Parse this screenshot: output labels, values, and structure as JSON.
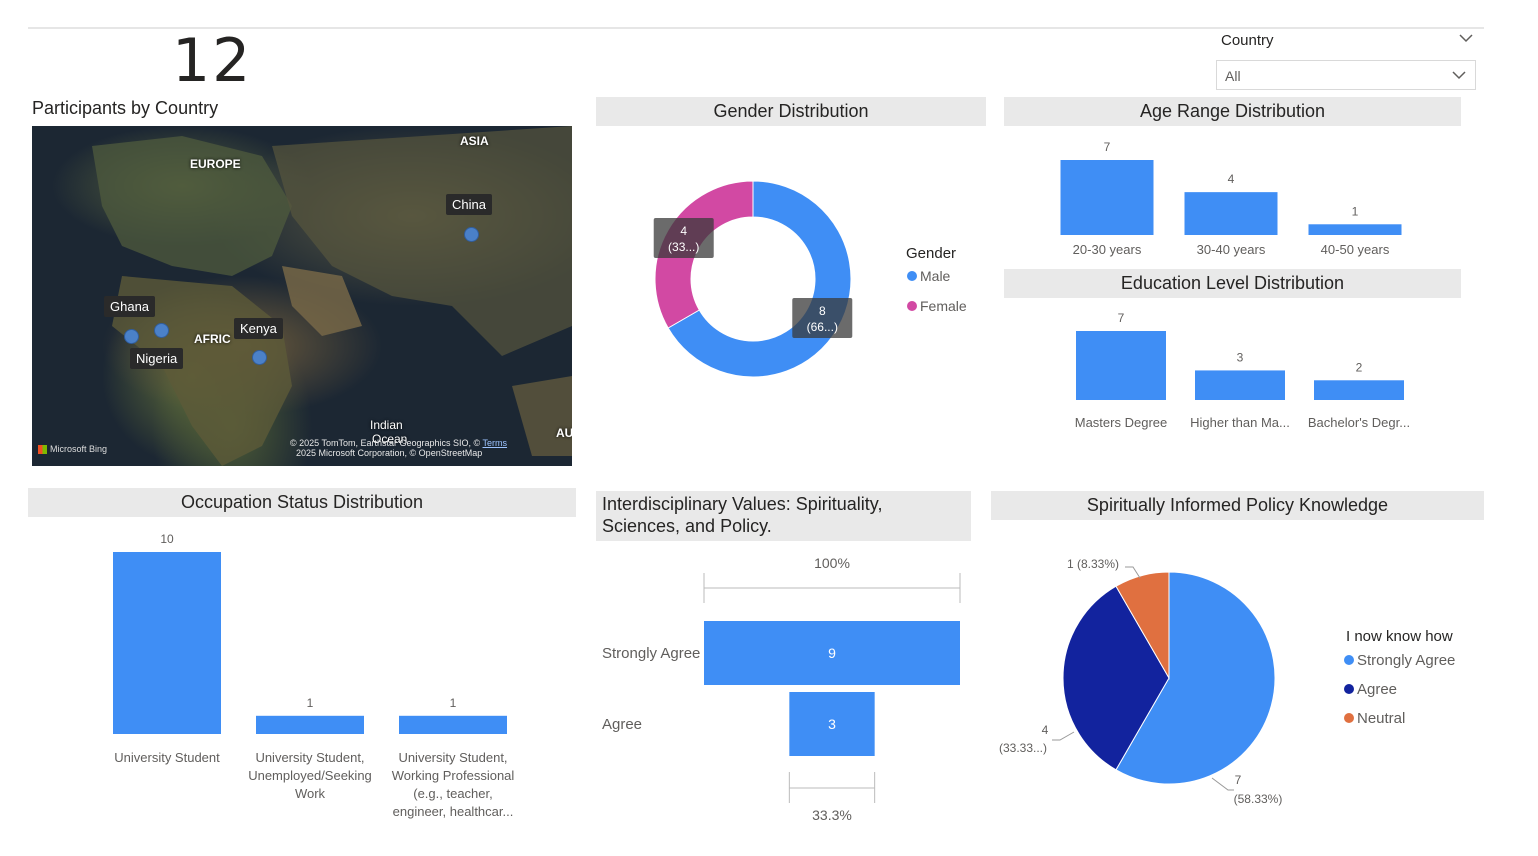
{
  "kpi": {
    "value": "12"
  },
  "slicer": {
    "label": "Country",
    "value": "All"
  },
  "map": {
    "title": "Participants by Country",
    "region_labels": [
      "ASIA",
      "EUROPE",
      "AFRIC",
      "Indian",
      "Ocean",
      "AU"
    ],
    "countries": [
      "China",
      "Ghana",
      "Kenya",
      "Nigeria"
    ],
    "attribution_brand": "Microsoft Bing",
    "attribution_line1": "© 2025 TomTom, Earthstar Geographics SIO, ©",
    "attribution_terms": "Terms",
    "attribution_line2": "2025 Microsoft Corporation, © OpenStreetMap"
  },
  "chart_data": [
    {
      "id": "gender",
      "type": "pie",
      "title": "Gender Distribution",
      "legend_title": "Gender",
      "legend_position": "right",
      "categories": [
        "Male",
        "Female"
      ],
      "values": [
        8,
        4
      ],
      "data_labels": [
        [
          "8",
          "(66...)"
        ],
        [
          "4",
          "(33...)"
        ]
      ],
      "colors": [
        "#3f8ef5",
        "#d249a3"
      ]
    },
    {
      "id": "age",
      "type": "bar",
      "title": "Age Range Distribution",
      "categories": [
        "20-30 years",
        "30-40 years",
        "40-50 years"
      ],
      "values": [
        7,
        4,
        1
      ],
      "color": "#3f8ef5"
    },
    {
      "id": "education",
      "type": "bar",
      "title": "Education Level Distribution",
      "categories": [
        "Masters Degree",
        "Higher than Ma...",
        "Bachelor's Degr..."
      ],
      "values": [
        7,
        3,
        2
      ],
      "color": "#3f8ef5"
    },
    {
      "id": "occupation",
      "type": "bar",
      "title": "Occupation Status Distribution",
      "categories": [
        [
          "University Student"
        ],
        [
          "University Student,",
          "Unemployed/Seeking",
          "Work"
        ],
        [
          "University Student,",
          "Working Professional",
          "(e.g., teacher,",
          "engineer, healthcar..."
        ]
      ],
      "values": [
        10,
        1,
        1
      ],
      "color": "#3f8ef5"
    },
    {
      "id": "interdisciplinary",
      "type": "bar",
      "title_lines": [
        "Interdisciplinary Values: Spirituality,",
        "Sciences, and Policy."
      ],
      "categories": [
        "Strongly Agree",
        "Agree"
      ],
      "values": [
        9,
        3
      ],
      "percent_labels": [
        "100%",
        "33.3%"
      ],
      "color": "#3f8ef5"
    },
    {
      "id": "policy",
      "type": "pie",
      "title": "Spiritually Informed Policy Knowledge",
      "legend_title": "I now know how",
      "legend_position": "right",
      "categories": [
        "Strongly Agree",
        "Agree",
        "Neutral"
      ],
      "values": [
        7,
        4,
        1
      ],
      "data_labels": [
        [
          "7",
          "(58.33%)"
        ],
        [
          "4",
          "(33.33...)"
        ],
        [
          "1 (8.33%)"
        ]
      ],
      "colors": [
        "#3f8ef5",
        "#12239e",
        "#e07040"
      ]
    }
  ]
}
